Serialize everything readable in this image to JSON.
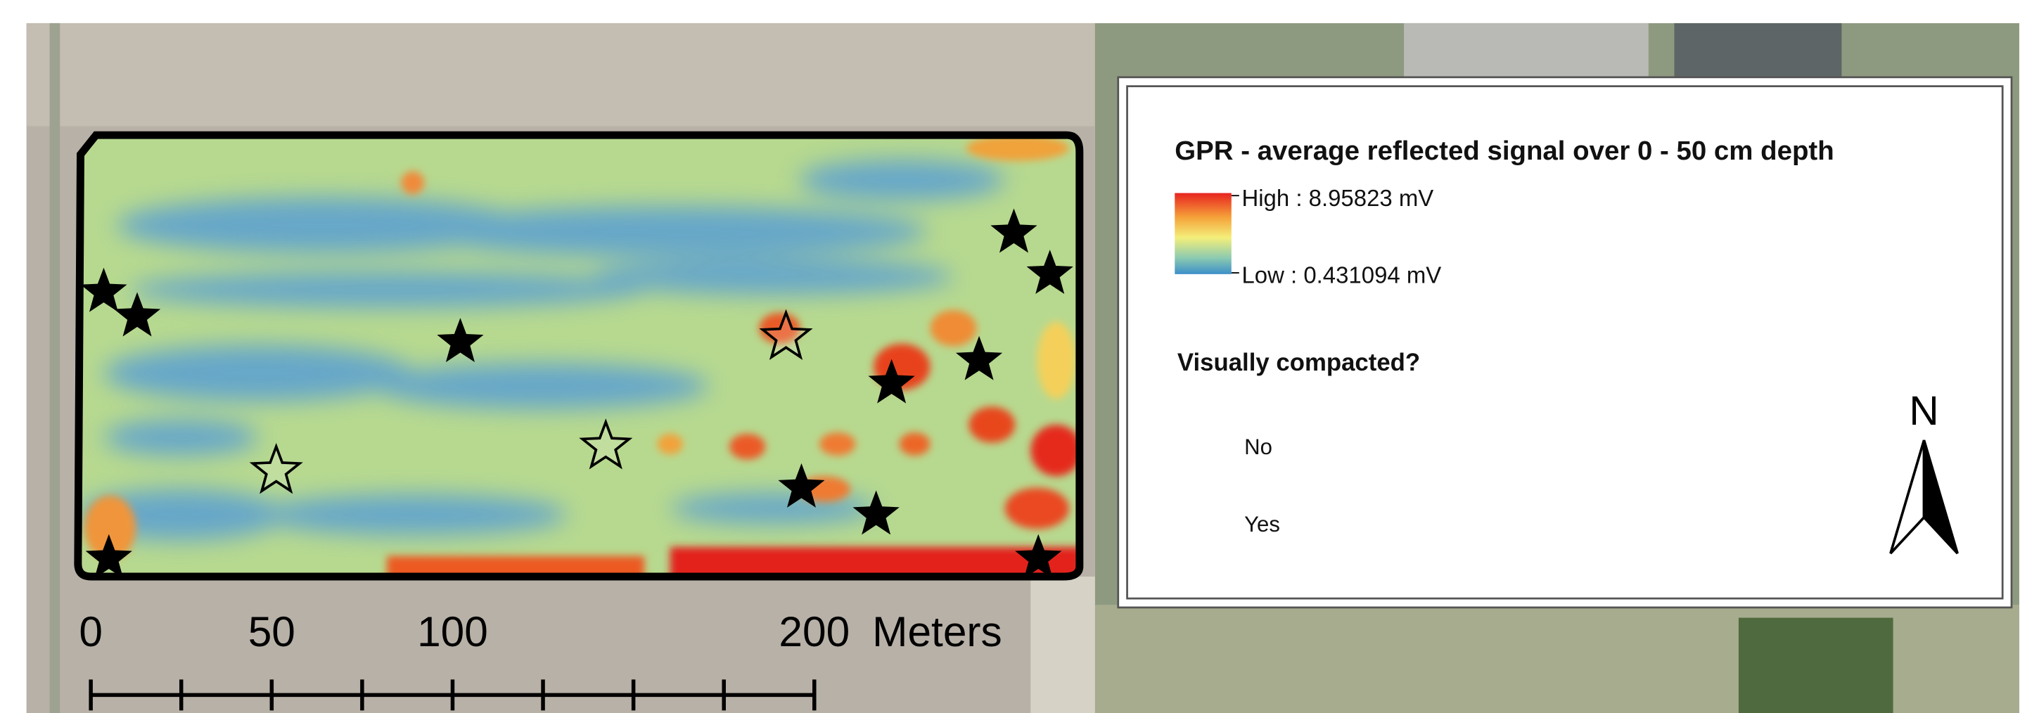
{
  "map": {
    "legend": {
      "title": "GPR - average reflected signal over 0 - 50 cm depth",
      "high_label": "High : 8.95823 mV",
      "low_label": "Low : 0.431094 mV",
      "marker_title": "Visually compacted?",
      "marker_items": [
        "No",
        "Yes"
      ]
    },
    "north_label": "N",
    "scale_bar": {
      "ticks": [
        0,
        50,
        100,
        200
      ],
      "unit": "Meters"
    }
  }
}
